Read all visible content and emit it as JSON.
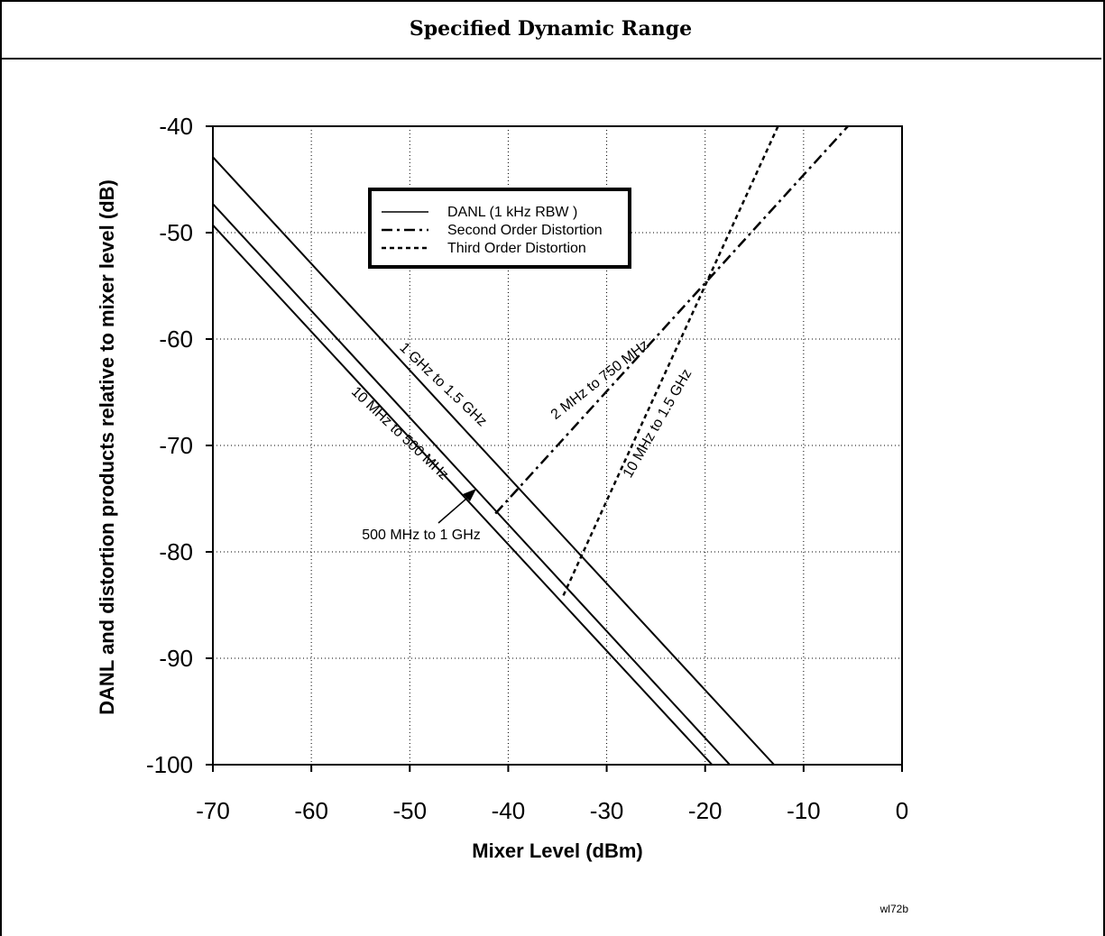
{
  "page_title": "Specified Dynamic Range",
  "figure_id": "wl72b",
  "chart_data": {
    "type": "line",
    "title": "",
    "xlabel": "Mixer Level (dBm)",
    "ylabel": "DANL and distortion products relative to mixer level (dB)",
    "xlim": [
      -70,
      0
    ],
    "ylim": [
      -100,
      -40
    ],
    "x_ticks": [
      -70,
      -60,
      -50,
      -40,
      -30,
      -20,
      -10,
      0
    ],
    "y_ticks": [
      -40,
      -50,
      -60,
      -70,
      -80,
      -90,
      -100
    ],
    "grid": true,
    "legend_position": "top-left",
    "legend": [
      {
        "label": "DANL (1 kHz RBW )",
        "style": "solid"
      },
      {
        "label": "Second Order Distortion",
        "style": "dashdot"
      },
      {
        "label": "Third Order Distortion",
        "style": "dotted"
      }
    ],
    "series": [
      {
        "name": "1 GHz to 1.5 GHz",
        "kind": "DANL",
        "style": "solid",
        "x": [
          -70,
          -13
        ],
        "y": [
          -42.9,
          -100
        ]
      },
      {
        "name": "500 MHz to 1 GHz",
        "kind": "DANL",
        "style": "solid",
        "x": [
          -70,
          -17.5
        ],
        "y": [
          -47.3,
          -100
        ]
      },
      {
        "name": "10 MHz to 500 MHz",
        "kind": "DANL",
        "style": "solid",
        "x": [
          -70,
          -19.3
        ],
        "y": [
          -49.3,
          -100
        ]
      },
      {
        "name": "2 MHz to 750 MHz",
        "kind": "Second Order Distortion",
        "style": "dashdot",
        "x": [
          -41.3,
          -5.5
        ],
        "y": [
          -76.4,
          -40
        ]
      },
      {
        "name": "10 MHz to 1.5 GHz",
        "kind": "Third Order Distortion",
        "style": "dotted",
        "x": [
          -34.4,
          -12.6
        ],
        "y": [
          -84.1,
          -40
        ]
      }
    ],
    "annotations": [
      {
        "text": "1 GHz to 1.5 GHz"
      },
      {
        "text": "10 MHz to 500 MHz"
      },
      {
        "text": "500 MHz to 1 GHz"
      },
      {
        "text": "2 MHz to 750 MHz"
      },
      {
        "text": "10 MHz to 1.5 GHz"
      }
    ]
  }
}
